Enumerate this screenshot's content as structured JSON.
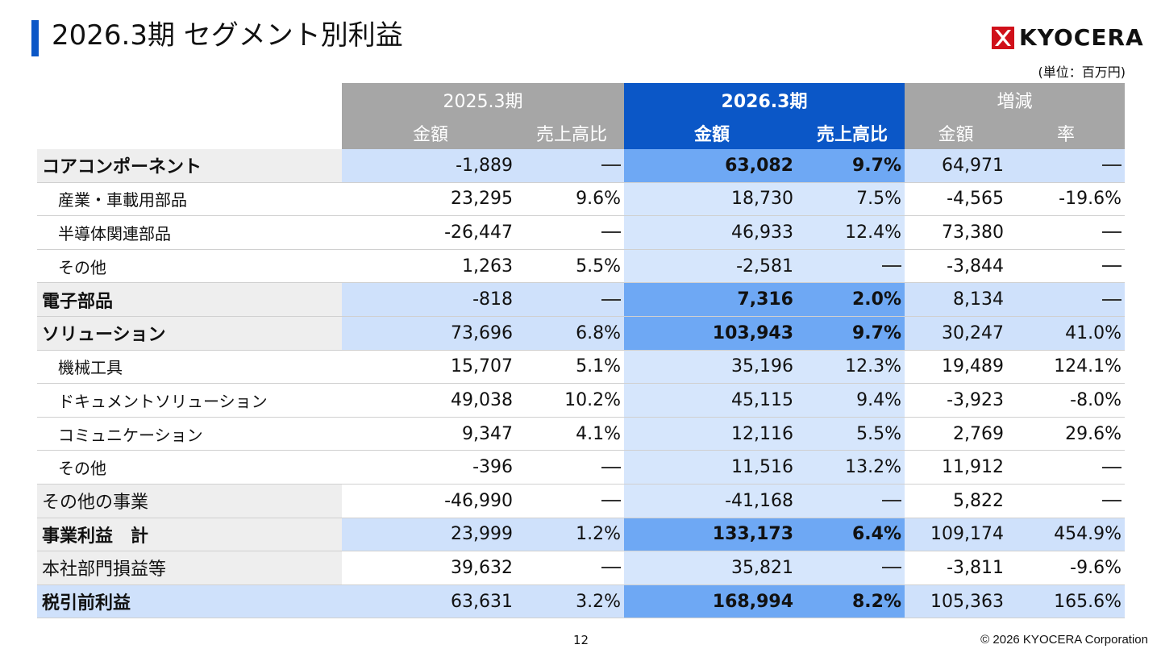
{
  "title": "2026.3期 セグメント別利益",
  "brand": "KYOCERA",
  "unit": "(単位：百万円)",
  "table": {
    "group_headers": [
      "2025.3期",
      "2026.3期",
      "増減"
    ],
    "sub_headers": [
      "金額",
      "売上高比",
      "金額",
      "売上高比",
      "金額",
      "率"
    ],
    "rows": [
      {
        "type": "major",
        "label": "コアコンポーネント",
        "v": [
          "-1,889",
          "—",
          "63,082",
          "9.7%",
          "64,971",
          "—"
        ]
      },
      {
        "type": "sub",
        "label": "産業・車載用部品",
        "v": [
          "23,295",
          "9.6%",
          "18,730",
          "7.5%",
          "-4,565",
          "-19.6%"
        ]
      },
      {
        "type": "sub",
        "label": "半導体関連部品",
        "v": [
          "-26,447",
          "—",
          "46,933",
          "12.4%",
          "73,380",
          "—"
        ]
      },
      {
        "type": "sub",
        "label": "その他",
        "v": [
          "1,263",
          "5.5%",
          "-2,581",
          "—",
          "-3,844",
          "—"
        ]
      },
      {
        "type": "major",
        "label": "電子部品",
        "v": [
          "-818",
          "—",
          "7,316",
          "2.0%",
          "8,134",
          "—"
        ]
      },
      {
        "type": "major",
        "label": "ソリューション",
        "v": [
          "73,696",
          "6.8%",
          "103,943",
          "9.7%",
          "30,247",
          "41.0%"
        ]
      },
      {
        "type": "sub",
        "label": "機械工具",
        "v": [
          "15,707",
          "5.1%",
          "35,196",
          "12.3%",
          "19,489",
          "124.1%"
        ]
      },
      {
        "type": "sub",
        "label": "ドキュメントソリューション",
        "v": [
          "49,038",
          "10.2%",
          "45,115",
          "9.4%",
          "-3,923",
          "-8.0%"
        ]
      },
      {
        "type": "sub",
        "label": "コミュニケーション",
        "v": [
          "9,347",
          "4.1%",
          "12,116",
          "5.5%",
          "2,769",
          "29.6%"
        ]
      },
      {
        "type": "sub",
        "label": "その他",
        "v": [
          "-396",
          "—",
          "11,516",
          "13.2%",
          "11,912",
          "—"
        ]
      },
      {
        "type": "plain",
        "label": "その他の事業",
        "v": [
          "-46,990",
          "—",
          "-41,168",
          "—",
          "5,822",
          "—"
        ]
      },
      {
        "type": "major",
        "label": "事業利益　計",
        "v": [
          "23,999",
          "1.2%",
          "133,173",
          "6.4%",
          "109,174",
          "454.9%"
        ]
      },
      {
        "type": "plain",
        "label": "本社部門損益等",
        "v": [
          "39,632",
          "—",
          "35,821",
          "—",
          "-3,811",
          "-9.6%"
        ]
      },
      {
        "type": "major final",
        "label": "税引前利益",
        "v": [
          "63,631",
          "3.2%",
          "168,994",
          "8.2%",
          "105,363",
          "165.6%"
        ]
      }
    ]
  },
  "page_number": "12",
  "copyright": "© 2026 KYOCERA Corporation",
  "colors": {
    "accent": "#0b57c7",
    "header_gray": "#a6a6a6",
    "highlight": "#6ea8f4",
    "light_blue": "#cfe1fb"
  }
}
